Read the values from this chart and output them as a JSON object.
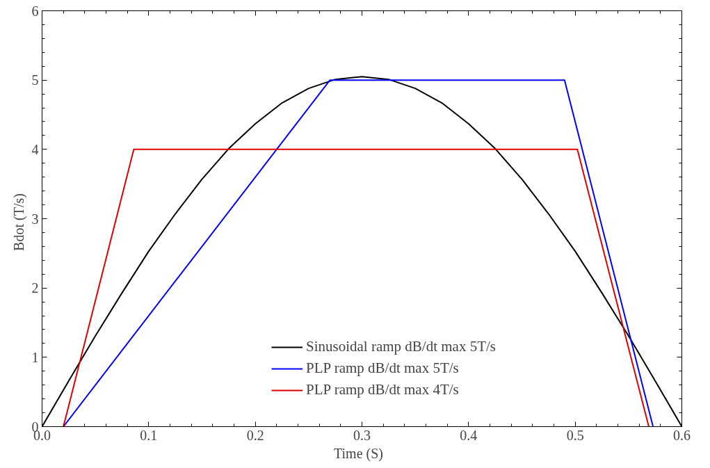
{
  "chart_data": {
    "type": "line",
    "xlabel": "Time   (S)",
    "ylabel": "Bdot   (T/s)",
    "xlim": [
      0,
      0.6
    ],
    "ylim": [
      0,
      6
    ],
    "xticks": [
      {
        "value": 0,
        "label": "0.0"
      },
      0.1,
      0.2,
      0.3,
      0.4,
      0.5,
      0.6
    ],
    "yticks": [
      0,
      1,
      2,
      3,
      4,
      5,
      6
    ],
    "grid": false,
    "legend": "bottom",
    "marker": "none",
    "line_style": "solid",
    "series": [
      {
        "name": "Sinusoidal ramp dB/dt max 5T/s",
        "color": "#000000",
        "x": [
          0,
          0.025,
          0.05,
          0.075,
          0.1,
          0.125,
          0.15,
          0.175,
          0.2,
          0.225,
          0.25,
          0.275,
          0.3,
          0.325,
          0.35,
          0.375,
          0.4,
          0.425,
          0.45,
          0.475,
          0.5,
          0.525,
          0.55,
          0.575,
          0.6
        ],
        "values": [
          0,
          0.66,
          1.31,
          1.93,
          2.53,
          3.07,
          3.57,
          4.01,
          4.37,
          4.67,
          4.88,
          5.01,
          5.05,
          5.01,
          4.88,
          4.67,
          4.37,
          4.01,
          3.57,
          3.07,
          2.53,
          1.93,
          1.31,
          0.66,
          0
        ]
      },
      {
        "name": "PLP ramp dB/dt max 5T/s",
        "color": "#0000ff",
        "x": [
          0.02,
          0.27,
          0.49,
          0.573
        ],
        "values": [
          0,
          5,
          5,
          0
        ]
      },
      {
        "name": "PLP ramp dB/dt max 4T/s",
        "color": "#e00000",
        "x": [
          0.02,
          0.086,
          0.502,
          0.569
        ],
        "values": [
          0,
          4,
          4,
          0
        ]
      }
    ]
  }
}
